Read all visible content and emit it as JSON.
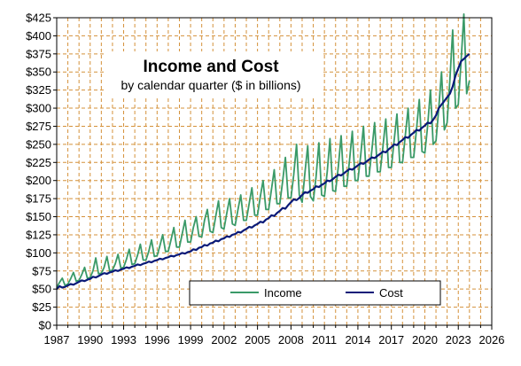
{
  "chart_data": {
    "type": "line",
    "title": "Income and Cost",
    "subtitle": "by calendar quarter ($ in billions)",
    "xlabel": "",
    "ylabel": "",
    "xlim": [
      1987,
      2026
    ],
    "ylim": [
      0,
      425
    ],
    "x_ticks": [
      1987,
      1990,
      1993,
      1996,
      1999,
      2002,
      2005,
      2008,
      2011,
      2014,
      2017,
      2020,
      2023,
      2026
    ],
    "y_ticks": [
      0,
      25,
      50,
      75,
      100,
      125,
      150,
      175,
      200,
      225,
      250,
      275,
      300,
      325,
      350,
      375,
      400,
      425
    ],
    "y_tick_format": "$",
    "grid": {
      "vertical": true,
      "horizontal": true,
      "style": "dashed"
    },
    "legend": {
      "placement": "bottom-right"
    },
    "colors": {
      "plot_bg": "#ffffff",
      "grid": "#d4913a",
      "income": "#3a9a68",
      "cost": "#0a1a78"
    },
    "series": [
      {
        "name": "Income",
        "color": "#3a9a68",
        "points": [
          [
            1987.0,
            52
          ],
          [
            1987.25,
            59
          ],
          [
            1987.5,
            65
          ],
          [
            1987.75,
            55
          ],
          [
            1988.0,
            57
          ],
          [
            1988.25,
            64
          ],
          [
            1988.5,
            73
          ],
          [
            1988.75,
            61
          ],
          [
            1989.0,
            62
          ],
          [
            1989.25,
            70
          ],
          [
            1989.5,
            80
          ],
          [
            1989.75,
            65
          ],
          [
            1990.0,
            66
          ],
          [
            1990.25,
            75
          ],
          [
            1990.5,
            93
          ],
          [
            1990.75,
            71
          ],
          [
            1991.0,
            72
          ],
          [
            1991.25,
            80
          ],
          [
            1991.5,
            95
          ],
          [
            1991.75,
            75
          ],
          [
            1992.0,
            76
          ],
          [
            1992.25,
            85
          ],
          [
            1992.5,
            98
          ],
          [
            1992.75,
            79
          ],
          [
            1993.0,
            80
          ],
          [
            1993.25,
            91
          ],
          [
            1993.5,
            105
          ],
          [
            1993.75,
            84
          ],
          [
            1994.0,
            85
          ],
          [
            1994.25,
            97
          ],
          [
            1994.5,
            112
          ],
          [
            1994.75,
            90
          ],
          [
            1995.0,
            90
          ],
          [
            1995.25,
            102
          ],
          [
            1995.5,
            118
          ],
          [
            1995.75,
            95
          ],
          [
            1996.0,
            96
          ],
          [
            1996.25,
            110
          ],
          [
            1996.5,
            125
          ],
          [
            1996.75,
            102
          ],
          [
            1997.0,
            102
          ],
          [
            1997.25,
            118
          ],
          [
            1997.5,
            135
          ],
          [
            1997.75,
            108
          ],
          [
            1998.0,
            108
          ],
          [
            1998.25,
            126
          ],
          [
            1998.5,
            145
          ],
          [
            1998.75,
            115
          ],
          [
            1999.0,
            115
          ],
          [
            1999.25,
            135
          ],
          [
            1999.5,
            150
          ],
          [
            1999.75,
            123
          ],
          [
            2000.0,
            122
          ],
          [
            2000.25,
            145
          ],
          [
            2000.5,
            160
          ],
          [
            2000.75,
            130
          ],
          [
            2001.0,
            128
          ],
          [
            2001.25,
            150
          ],
          [
            2001.5,
            172
          ],
          [
            2001.75,
            135
          ],
          [
            2002.0,
            133
          ],
          [
            2002.25,
            155
          ],
          [
            2002.5,
            175
          ],
          [
            2002.75,
            140
          ],
          [
            2003.0,
            138
          ],
          [
            2003.25,
            160
          ],
          [
            2003.5,
            180
          ],
          [
            2003.75,
            145
          ],
          [
            2004.0,
            145
          ],
          [
            2004.25,
            168
          ],
          [
            2004.5,
            190
          ],
          [
            2004.75,
            152
          ],
          [
            2005.0,
            152
          ],
          [
            2005.25,
            178
          ],
          [
            2005.5,
            200
          ],
          [
            2005.75,
            160
          ],
          [
            2006.0,
            160
          ],
          [
            2006.25,
            188
          ],
          [
            2006.5,
            215
          ],
          [
            2006.75,
            168
          ],
          [
            2007.0,
            168
          ],
          [
            2007.25,
            198
          ],
          [
            2007.5,
            232
          ],
          [
            2007.75,
            176
          ],
          [
            2008.0,
            176
          ],
          [
            2008.25,
            208
          ],
          [
            2008.5,
            250
          ],
          [
            2008.75,
            180
          ],
          [
            2009.0,
            170
          ],
          [
            2009.25,
            210
          ],
          [
            2009.5,
            248
          ],
          [
            2009.75,
            178
          ],
          [
            2010.0,
            172
          ],
          [
            2010.25,
            205
          ],
          [
            2010.5,
            252
          ],
          [
            2010.75,
            180
          ],
          [
            2011.0,
            178
          ],
          [
            2011.25,
            212
          ],
          [
            2011.5,
            258
          ],
          [
            2011.75,
            186
          ],
          [
            2012.0,
            185
          ],
          [
            2012.25,
            220
          ],
          [
            2012.5,
            262
          ],
          [
            2012.75,
            192
          ],
          [
            2013.0,
            192
          ],
          [
            2013.25,
            228
          ],
          [
            2013.5,
            268
          ],
          [
            2013.75,
            200
          ],
          [
            2014.0,
            200
          ],
          [
            2014.25,
            235
          ],
          [
            2014.5,
            275
          ],
          [
            2014.75,
            206
          ],
          [
            2015.0,
            206
          ],
          [
            2015.25,
            242
          ],
          [
            2015.5,
            280
          ],
          [
            2015.75,
            212
          ],
          [
            2016.0,
            212
          ],
          [
            2016.25,
            248
          ],
          [
            2016.5,
            285
          ],
          [
            2016.75,
            218
          ],
          [
            2017.0,
            218
          ],
          [
            2017.25,
            255
          ],
          [
            2017.5,
            292
          ],
          [
            2017.75,
            225
          ],
          [
            2018.0,
            225
          ],
          [
            2018.25,
            262
          ],
          [
            2018.5,
            300
          ],
          [
            2018.75,
            232
          ],
          [
            2019.0,
            232
          ],
          [
            2019.25,
            270
          ],
          [
            2019.5,
            312
          ],
          [
            2019.75,
            240
          ],
          [
            2020.0,
            238
          ],
          [
            2020.25,
            275
          ],
          [
            2020.5,
            325
          ],
          [
            2020.75,
            250
          ],
          [
            2021.0,
            255
          ],
          [
            2021.25,
            300
          ],
          [
            2021.5,
            350
          ],
          [
            2021.75,
            270
          ],
          [
            2022.0,
            280
          ],
          [
            2022.25,
            340
          ],
          [
            2022.5,
            408
          ],
          [
            2022.75,
            300
          ],
          [
            2023.0,
            305
          ],
          [
            2023.25,
            365
          ],
          [
            2023.5,
            430
          ],
          [
            2023.75,
            320
          ],
          [
            2024.0,
            338
          ]
        ]
      },
      {
        "name": "Cost",
        "color": "#0a1a78",
        "points": [
          [
            1987.0,
            50
          ],
          [
            1987.25,
            54
          ],
          [
            1987.5,
            52
          ],
          [
            1987.75,
            53
          ],
          [
            1988.0,
            55
          ],
          [
            1988.25,
            57
          ],
          [
            1988.5,
            56
          ],
          [
            1988.75,
            58
          ],
          [
            1989.0,
            60
          ],
          [
            1989.25,
            62
          ],
          [
            1989.5,
            61
          ],
          [
            1989.75,
            63
          ],
          [
            1990.0,
            64
          ],
          [
            1990.25,
            67
          ],
          [
            1990.5,
            66
          ],
          [
            1990.75,
            68
          ],
          [
            1991.0,
            70
          ],
          [
            1991.25,
            72
          ],
          [
            1991.5,
            71
          ],
          [
            1991.75,
            73
          ],
          [
            1992.0,
            74
          ],
          [
            1992.25,
            76
          ],
          [
            1992.5,
            75
          ],
          [
            1992.75,
            77
          ],
          [
            1993.0,
            78
          ],
          [
            1993.25,
            80
          ],
          [
            1993.5,
            79
          ],
          [
            1993.75,
            81
          ],
          [
            1994.0,
            82
          ],
          [
            1994.25,
            84
          ],
          [
            1994.5,
            83
          ],
          [
            1994.75,
            85
          ],
          [
            1995.0,
            86
          ],
          [
            1995.25,
            88
          ],
          [
            1995.5,
            87
          ],
          [
            1995.75,
            89
          ],
          [
            1996.0,
            90
          ],
          [
            1996.25,
            92
          ],
          [
            1996.5,
            91
          ],
          [
            1996.75,
            93
          ],
          [
            1997.0,
            94
          ],
          [
            1997.25,
            96
          ],
          [
            1997.5,
            95
          ],
          [
            1997.75,
            97
          ],
          [
            1998.0,
            98
          ],
          [
            1998.25,
            100
          ],
          [
            1998.5,
            99
          ],
          [
            1998.75,
            101
          ],
          [
            1999.0,
            102
          ],
          [
            1999.25,
            105
          ],
          [
            1999.5,
            104
          ],
          [
            1999.75,
            107
          ],
          [
            2000.0,
            108
          ],
          [
            2000.25,
            111
          ],
          [
            2000.5,
            110
          ],
          [
            2000.75,
            113
          ],
          [
            2001.0,
            114
          ],
          [
            2001.25,
            117
          ],
          [
            2001.5,
            116
          ],
          [
            2001.75,
            119
          ],
          [
            2002.0,
            120
          ],
          [
            2002.25,
            123
          ],
          [
            2002.5,
            122
          ],
          [
            2002.75,
            125
          ],
          [
            2003.0,
            126
          ],
          [
            2003.25,
            129
          ],
          [
            2003.5,
            128
          ],
          [
            2003.75,
            131
          ],
          [
            2004.0,
            133
          ],
          [
            2004.25,
            136
          ],
          [
            2004.5,
            135
          ],
          [
            2004.75,
            138
          ],
          [
            2005.0,
            140
          ],
          [
            2005.25,
            143
          ],
          [
            2005.5,
            142
          ],
          [
            2005.75,
            146
          ],
          [
            2006.0,
            148
          ],
          [
            2006.25,
            152
          ],
          [
            2006.5,
            151
          ],
          [
            2006.75,
            155
          ],
          [
            2007.0,
            158
          ],
          [
            2007.25,
            162
          ],
          [
            2007.5,
            161
          ],
          [
            2007.75,
            166
          ],
          [
            2008.0,
            170
          ],
          [
            2008.25,
            174
          ],
          [
            2008.5,
            173
          ],
          [
            2008.75,
            176
          ],
          [
            2009.0,
            180
          ],
          [
            2009.25,
            184
          ],
          [
            2009.5,
            183
          ],
          [
            2009.75,
            186
          ],
          [
            2010.0,
            188
          ],
          [
            2010.25,
            192
          ],
          [
            2010.5,
            191
          ],
          [
            2010.75,
            194
          ],
          [
            2011.0,
            196
          ],
          [
            2011.25,
            200
          ],
          [
            2011.5,
            199
          ],
          [
            2011.75,
            202
          ],
          [
            2012.0,
            205
          ],
          [
            2012.25,
            208
          ],
          [
            2012.5,
            207
          ],
          [
            2012.75,
            210
          ],
          [
            2013.0,
            213
          ],
          [
            2013.25,
            216
          ],
          [
            2013.5,
            215
          ],
          [
            2013.75,
            218
          ],
          [
            2014.0,
            221
          ],
          [
            2014.25,
            224
          ],
          [
            2014.5,
            223
          ],
          [
            2014.75,
            226
          ],
          [
            2015.0,
            229
          ],
          [
            2015.25,
            232
          ],
          [
            2015.5,
            231
          ],
          [
            2015.75,
            234
          ],
          [
            2016.0,
            237
          ],
          [
            2016.25,
            240
          ],
          [
            2016.5,
            239
          ],
          [
            2016.75,
            243
          ],
          [
            2017.0,
            246
          ],
          [
            2017.25,
            250
          ],
          [
            2017.5,
            249
          ],
          [
            2017.75,
            253
          ],
          [
            2018.0,
            256
          ],
          [
            2018.25,
            260
          ],
          [
            2018.5,
            259
          ],
          [
            2018.75,
            263
          ],
          [
            2019.0,
            266
          ],
          [
            2019.25,
            270
          ],
          [
            2019.5,
            269
          ],
          [
            2019.75,
            273
          ],
          [
            2020.0,
            276
          ],
          [
            2020.25,
            280
          ],
          [
            2020.5,
            279
          ],
          [
            2020.75,
            284
          ],
          [
            2021.0,
            290
          ],
          [
            2021.25,
            300
          ],
          [
            2021.5,
            305
          ],
          [
            2021.75,
            310
          ],
          [
            2022.0,
            315
          ],
          [
            2022.25,
            320
          ],
          [
            2022.5,
            330
          ],
          [
            2022.75,
            345
          ],
          [
            2023.0,
            355
          ],
          [
            2023.25,
            365
          ],
          [
            2023.5,
            368
          ],
          [
            2023.75,
            372
          ],
          [
            2024.0,
            375
          ]
        ]
      }
    ]
  }
}
